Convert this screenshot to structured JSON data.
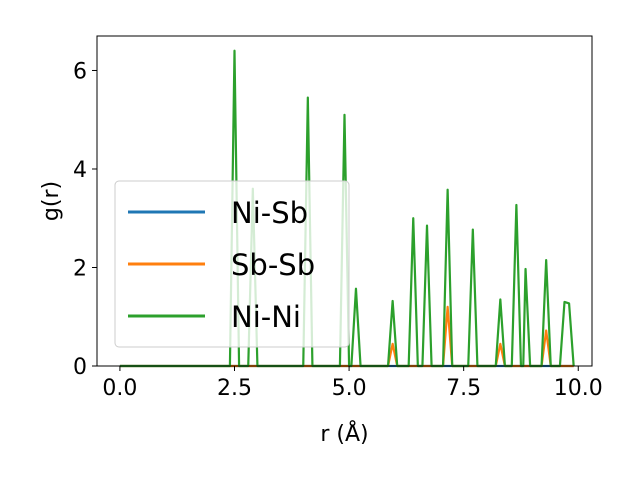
{
  "chart_data": {
    "type": "line",
    "xlabel": "r (Å)",
    "ylabel": "g(r)",
    "xlim": [
      -0.5,
      10.3
    ],
    "ylim": [
      0,
      6.7
    ],
    "xticks": [
      0.0,
      2.5,
      5.0,
      7.5,
      10.0
    ],
    "xtick_labels": [
      "0.0",
      "2.5",
      "5.0",
      "7.5",
      "10.0"
    ],
    "yticks": [
      0,
      2,
      4,
      6
    ],
    "ytick_labels": [
      "0",
      "2",
      "4",
      "6"
    ],
    "grid": false,
    "legend_position": "center-left",
    "series": [
      {
        "name": "Ni-Sb",
        "color": "#1f77b4",
        "x": [
          0.0,
          9.9
        ],
        "y": [
          0.0,
          0.0
        ]
      },
      {
        "name": "Sb-Sb",
        "color": "#ff7f0e",
        "x": [
          0.0,
          5.85,
          5.95,
          6.05,
          7.05,
          7.15,
          7.25,
          8.2,
          8.3,
          8.4,
          9.2,
          9.3,
          9.4,
          9.9
        ],
        "y": [
          0.0,
          0.0,
          0.45,
          0.0,
          0.0,
          1.2,
          0.0,
          0.0,
          0.45,
          0.0,
          0.0,
          0.72,
          0.0,
          0.0
        ]
      },
      {
        "name": "Ni-Ni",
        "color": "#2ca02c",
        "x": [
          0.0,
          2.4,
          2.5,
          2.6,
          2.8,
          2.9,
          3.0,
          4.0,
          4.1,
          4.2,
          4.8,
          4.9,
          5.0,
          5.05,
          5.15,
          5.25,
          5.85,
          5.95,
          6.05,
          6.3,
          6.4,
          6.5,
          6.6,
          6.7,
          6.8,
          7.05,
          7.15,
          7.25,
          7.6,
          7.7,
          7.8,
          8.2,
          8.3,
          8.4,
          8.55,
          8.65,
          8.75,
          8.8,
          8.85,
          8.95,
          9.2,
          9.3,
          9.4,
          9.6,
          9.7,
          9.8,
          9.9
        ],
        "y": [
          0.0,
          0.0,
          6.4,
          0.0,
          0.0,
          3.6,
          0.0,
          0.0,
          5.45,
          0.0,
          0.0,
          5.1,
          0.0,
          0.0,
          1.57,
          0.0,
          0.0,
          1.32,
          0.0,
          0.0,
          3.0,
          0.0,
          0.0,
          2.85,
          0.0,
          0.0,
          3.58,
          0.0,
          0.0,
          2.77,
          0.0,
          0.0,
          1.35,
          0.0,
          0.0,
          3.27,
          0.0,
          0.0,
          1.97,
          0.0,
          0.0,
          2.15,
          0.0,
          0.0,
          1.3,
          1.27,
          0.0
        ]
      }
    ]
  }
}
